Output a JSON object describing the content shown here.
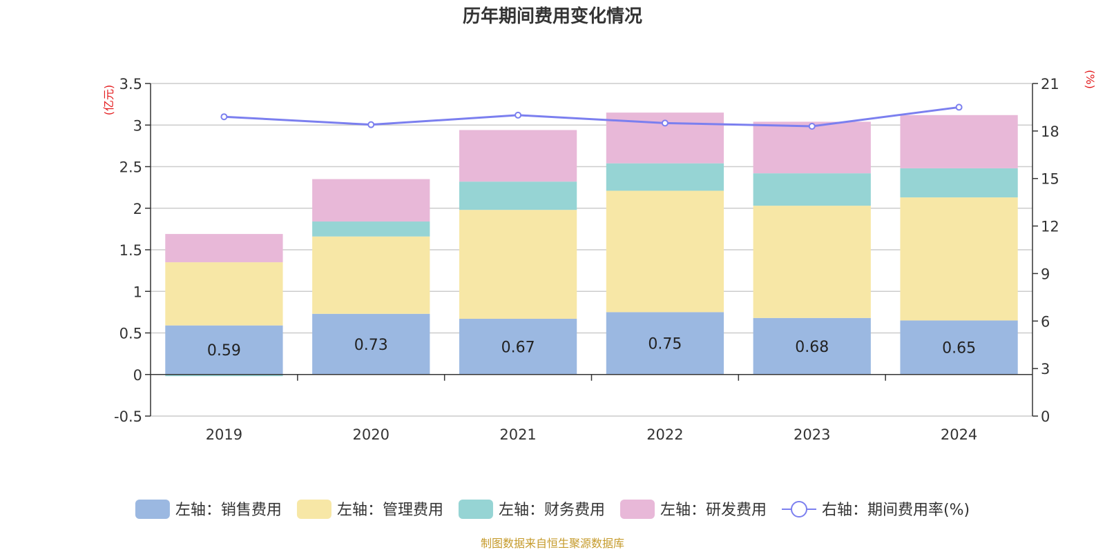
{
  "chart_data": {
    "type": "bar",
    "title": "历年期间费用变化情况",
    "categories": [
      "2019",
      "2020",
      "2021",
      "2022",
      "2023",
      "2024"
    ],
    "left_axis": {
      "unit": "(亿元)",
      "ticks": [
        "-0.5",
        "0",
        "0.5",
        "1",
        "1.5",
        "2",
        "2.5",
        "3",
        "3.5"
      ],
      "ylim": [
        -0.5,
        3.5
      ]
    },
    "right_axis": {
      "unit": "(%)",
      "ticks": [
        "0",
        "3",
        "6",
        "9",
        "12",
        "15",
        "18",
        "21"
      ],
      "ylim": [
        0,
        21
      ]
    },
    "stacked": true,
    "series": [
      {
        "name": "左轴：销售费用",
        "axis": "left",
        "color": "#9bb8e1",
        "values": [
          0.59,
          0.73,
          0.67,
          0.75,
          0.68,
          0.65
        ],
        "labels": [
          "0.59",
          "0.73",
          "0.67",
          "0.75",
          "0.68",
          "0.65"
        ]
      },
      {
        "name": "左轴：管理费用",
        "axis": "left",
        "color": "#f7e7a6",
        "values": [
          0.76,
          0.93,
          1.31,
          1.46,
          1.35,
          1.48
        ]
      },
      {
        "name": "左轴：财务费用",
        "axis": "left",
        "color": "#96d4d4",
        "values": [
          -0.02,
          0.18,
          0.34,
          0.33,
          0.39,
          0.35
        ]
      },
      {
        "name": "左轴：研发费用",
        "axis": "left",
        "color": "#e8b8d8",
        "values": [
          0.34,
          0.51,
          0.62,
          0.61,
          0.62,
          0.64
        ]
      },
      {
        "name": "右轴：期间费用率(%)",
        "axis": "right",
        "type": "line",
        "color": "#7b7fef",
        "values": [
          18.9,
          18.4,
          19.0,
          18.5,
          18.3,
          19.5
        ]
      }
    ],
    "grid": true,
    "legend_position": "bottom"
  },
  "source_note": "制图数据来自恒生聚源数据库"
}
